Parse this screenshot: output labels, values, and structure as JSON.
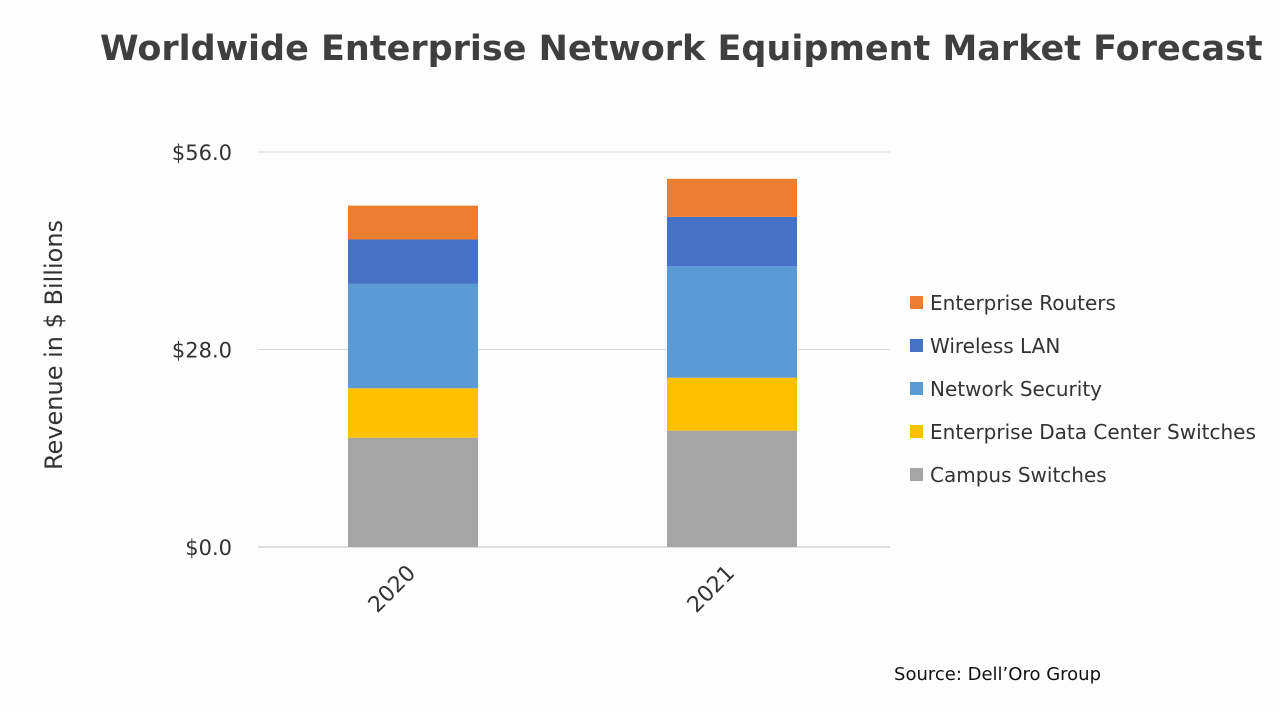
{
  "chart_data": {
    "type": "bar",
    "stacked": true,
    "title": "Worldwide Enterprise Network Equipment Market Forecast",
    "ylabel": "Revenue in $ Billions",
    "xlabel": "",
    "categories": [
      "2020",
      "2021"
    ],
    "ylim": [
      0,
      56
    ],
    "yticks": [
      "$0.0",
      "$28.0",
      "$56.0"
    ],
    "ytick_values": [
      0,
      28,
      56
    ],
    "grid": true,
    "legend_position": "right",
    "series": [
      {
        "name": "Campus Switches",
        "color": "#a5a5a5",
        "values": [
          15.5,
          16.5
        ]
      },
      {
        "name": "Enterprise Data Center Switches",
        "color": "#ffc000",
        "values": [
          7.0,
          7.5
        ]
      },
      {
        "name": "Network Security",
        "color": "#5b9bd5",
        "values": [
          14.8,
          15.8
        ]
      },
      {
        "name": "Wireless LAN",
        "color": "#4472c4",
        "values": [
          6.3,
          7.0
        ]
      },
      {
        "name": "Enterprise Routers",
        "color": "#ed7d31",
        "values": [
          4.8,
          5.4
        ]
      }
    ],
    "source": "Source: Dell’Oro Group"
  }
}
